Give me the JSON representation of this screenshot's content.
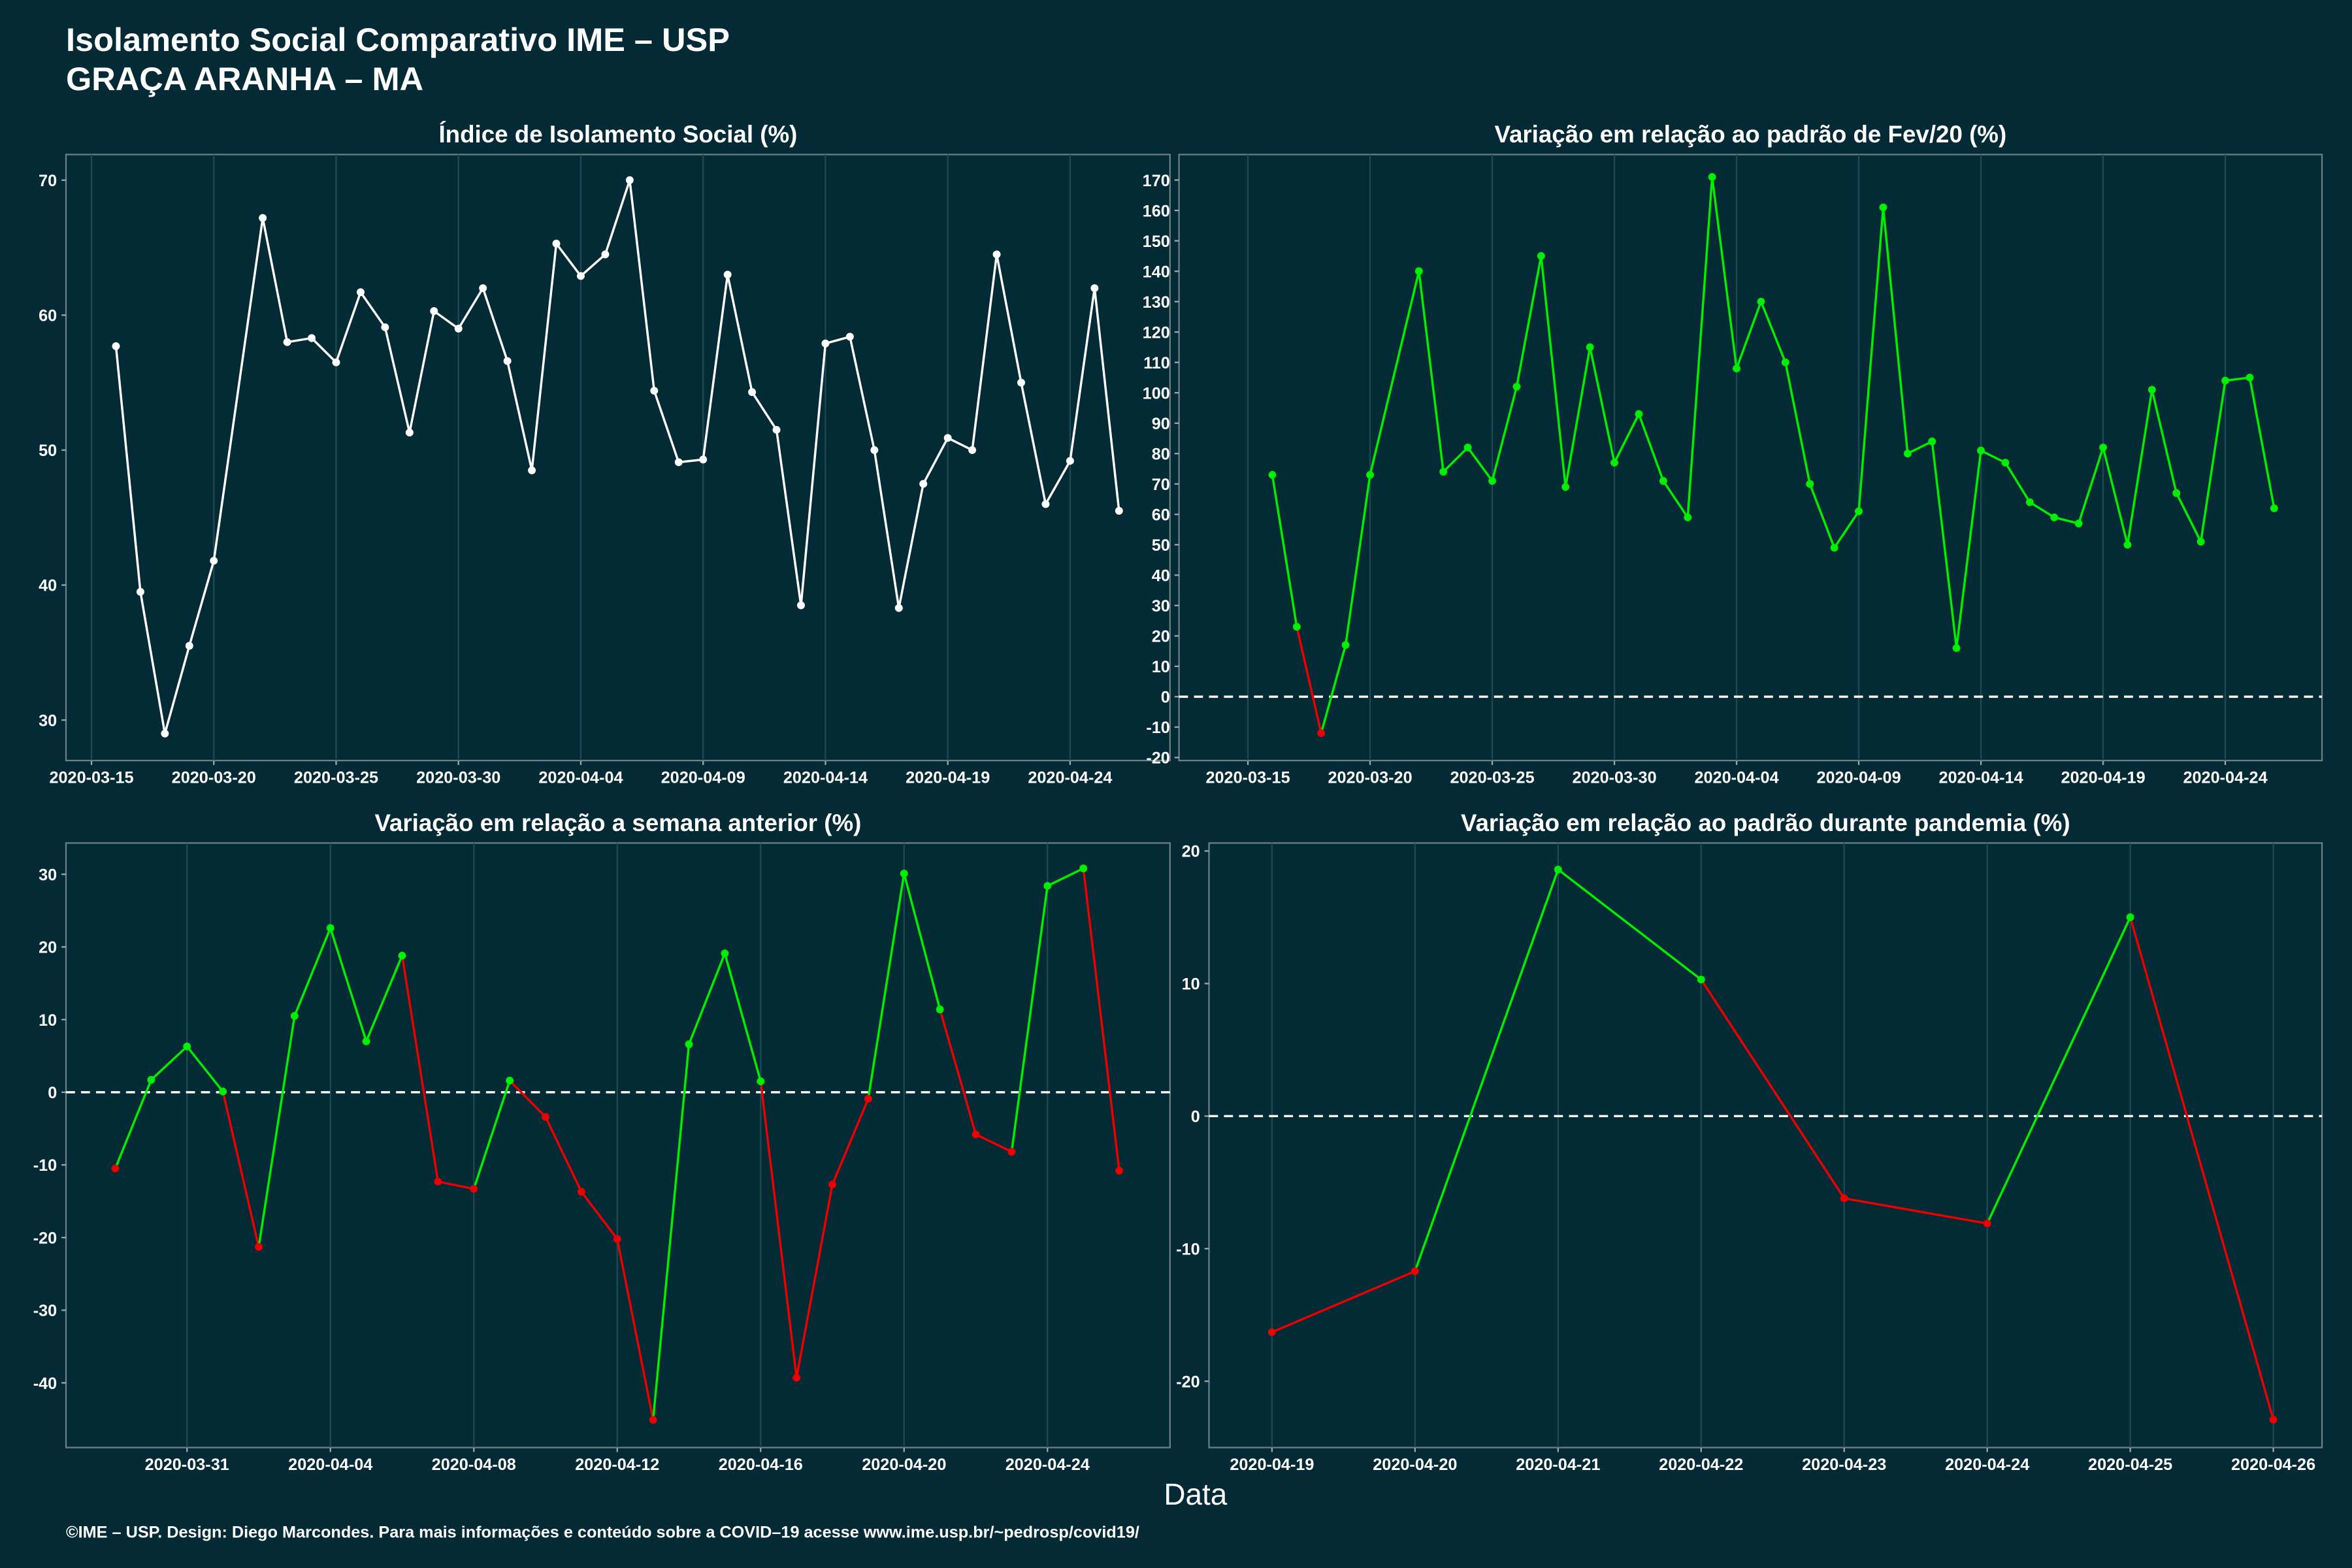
{
  "title": "Isolamento Social Comparativo IME – USP",
  "subtitle": "GRAÇA ARANHA – MA",
  "xlabel": "Data",
  "caption": "©IME – USP. Design: Diego Marcondes. Para mais informações e conteúdo sobre a COVID–19 acesse www.ime.usp.br/~pedrosp/covid19/",
  "chart_data": [
    {
      "type": "line",
      "title": "Índice de Isolamento Social (%)",
      "x": [
        "2020-03-16",
        "2020-03-17",
        "2020-03-18",
        "2020-03-19",
        "2020-03-20",
        "2020-03-22",
        "2020-03-23",
        "2020-03-24",
        "2020-03-25",
        "2020-03-26",
        "2020-03-27",
        "2020-03-28",
        "2020-03-29",
        "2020-03-30",
        "2020-03-31",
        "2020-04-01",
        "2020-04-02",
        "2020-04-03",
        "2020-04-04",
        "2020-04-05",
        "2020-04-06",
        "2020-04-07",
        "2020-04-08",
        "2020-04-09",
        "2020-04-10",
        "2020-04-11",
        "2020-04-12",
        "2020-04-13",
        "2020-04-14",
        "2020-04-15",
        "2020-04-16",
        "2020-04-17",
        "2020-04-18",
        "2020-04-19",
        "2020-04-20",
        "2020-04-21",
        "2020-04-22",
        "2020-04-23",
        "2020-04-24",
        "2020-04-25",
        "2020-04-26"
      ],
      "series": [
        {
          "color": "#ffffff",
          "values": [
            57.7,
            39.5,
            29.0,
            35.5,
            41.8,
            67.2,
            58.0,
            58.3,
            56.5,
            61.7,
            59.1,
            51.3,
            60.3,
            59.0,
            62.0,
            56.6,
            48.5,
            65.3,
            62.9,
            64.5,
            70.0,
            54.4,
            49.1,
            49.3,
            63.0,
            54.3,
            51.5,
            38.5,
            57.9,
            58.4,
            50.0,
            38.3,
            47.5,
            50.9,
            50.0,
            64.5,
            55.0,
            46.0,
            49.2,
            62.0,
            45.5
          ]
        }
      ],
      "xlim": [
        "2020-03-13T23:00:00Z",
        "2020-04-28T02:00:00Z"
      ],
      "xticks": [
        "2020-03-15",
        "2020-03-20",
        "2020-03-25",
        "2020-03-30",
        "2020-04-04",
        "2020-04-09",
        "2020-04-14",
        "2020-04-19",
        "2020-04-24"
      ],
      "ylim": [
        27,
        71.9
      ],
      "yticks": [
        30,
        40,
        50,
        60,
        70
      ],
      "zero_line": false
    },
    {
      "type": "line",
      "title": "Variação em relação ao padrão de Fev/20 (%)",
      "x": [
        "2020-03-16",
        "2020-03-17",
        "2020-03-18",
        "2020-03-19",
        "2020-03-20",
        "2020-03-22",
        "2020-03-23",
        "2020-03-24",
        "2020-03-25",
        "2020-03-26",
        "2020-03-27",
        "2020-03-28",
        "2020-03-29",
        "2020-03-30",
        "2020-03-31",
        "2020-04-01",
        "2020-04-02",
        "2020-04-03",
        "2020-04-04",
        "2020-04-05",
        "2020-04-06",
        "2020-04-07",
        "2020-04-08",
        "2020-04-09",
        "2020-04-10",
        "2020-04-11",
        "2020-04-12",
        "2020-04-13",
        "2020-04-14",
        "2020-04-15",
        "2020-04-16",
        "2020-04-17",
        "2020-04-18",
        "2020-04-19",
        "2020-04-20",
        "2020-04-21",
        "2020-04-22",
        "2020-04-23",
        "2020-04-24",
        "2020-04-25",
        "2020-04-26"
      ],
      "series": [
        {
          "positive_color": "#00ee00",
          "negative_color": "#ee0000",
          "values": [
            73,
            23,
            -12,
            17,
            73,
            140,
            74,
            82,
            71,
            102,
            145,
            69,
            115,
            77,
            93,
            71,
            59,
            171,
            108,
            130,
            110,
            70,
            49,
            61,
            161,
            80,
            84,
            16,
            81,
            77,
            64,
            59,
            57,
            82,
            50,
            101,
            67,
            51,
            104,
            105,
            62
          ]
        }
      ],
      "xlim": [
        "2020-03-12T04:20:00Z",
        "2020-04-27T23:00:00Z"
      ],
      "xticks": [
        "2020-03-15",
        "2020-03-20",
        "2020-03-25",
        "2020-03-30",
        "2020-04-04",
        "2020-04-09",
        "2020-04-14",
        "2020-04-19",
        "2020-04-24"
      ],
      "ylim": [
        -21,
        178.4
      ],
      "yticks": [
        -20,
        -10,
        0,
        10,
        20,
        30,
        40,
        50,
        60,
        70,
        80,
        90,
        100,
        110,
        120,
        130,
        140,
        150,
        160,
        170
      ],
      "zero_line": true
    },
    {
      "type": "line",
      "title": "Variação em relação a semana anterior (%)",
      "x": [
        "2020-03-29",
        "2020-03-30",
        "2020-03-31",
        "2020-04-01",
        "2020-04-02",
        "2020-04-03",
        "2020-04-04",
        "2020-04-05",
        "2020-04-06",
        "2020-04-07",
        "2020-04-08",
        "2020-04-09",
        "2020-04-10",
        "2020-04-11",
        "2020-04-12",
        "2020-04-13",
        "2020-04-14",
        "2020-04-15",
        "2020-04-16",
        "2020-04-17",
        "2020-04-18",
        "2020-04-19",
        "2020-04-20",
        "2020-04-21",
        "2020-04-22",
        "2020-04-23",
        "2020-04-24",
        "2020-04-25",
        "2020-04-26"
      ],
      "series": [
        {
          "positive_color": "#00ee00",
          "negative_color": "#ee0000",
          "values": [
            -10.5,
            1.7,
            6.3,
            0.1,
            -21.3,
            10.5,
            22.6,
            7.0,
            18.8,
            -12.3,
            -13.3,
            1.6,
            -3.4,
            -13.7,
            -20.2,
            -45.1,
            6.6,
            19.1,
            1.5,
            -39.3,
            -12.7,
            -0.9,
            30.1,
            11.4,
            -5.8,
            -8.2,
            28.4,
            30.8,
            -10.8
          ]
        }
      ],
      "xlim": [
        "2020-03-27T15:00:00Z",
        "2020-04-27T10:00:00Z"
      ],
      "xticks": [
        "2020-03-31",
        "2020-04-04",
        "2020-04-08",
        "2020-04-12",
        "2020-04-16",
        "2020-04-20",
        "2020-04-24"
      ],
      "ylim": [
        -48.9,
        34.3
      ],
      "yticks": [
        -40,
        -30,
        -20,
        -10,
        0,
        10,
        20,
        30
      ],
      "zero_line": true
    },
    {
      "type": "line",
      "title": "Variação em relação ao padrão durante pandemia (%)",
      "x": [
        "2020-04-19",
        "2020-04-20",
        "2020-04-21",
        "2020-04-22",
        "2020-04-23",
        "2020-04-24",
        "2020-04-25",
        "2020-04-26"
      ],
      "series": [
        {
          "positive_color": "#00ee00",
          "negative_color": "#ee0000",
          "values": [
            -16.3,
            -11.7,
            18.6,
            10.3,
            -6.2,
            -8.1,
            15.0,
            -22.9
          ]
        }
      ],
      "xlim": [
        "2020-04-18T13:26:00Z",
        "2020-04-26T08:10:00Z"
      ],
      "xticks": [
        "2020-04-19",
        "2020-04-20",
        "2020-04-21",
        "2020-04-22",
        "2020-04-23",
        "2020-04-24",
        "2020-04-25",
        "2020-04-26"
      ],
      "ylim": [
        -25.0,
        20.6
      ],
      "yticks": [
        -20,
        -10,
        0,
        10,
        20
      ],
      "zero_line": true
    }
  ]
}
